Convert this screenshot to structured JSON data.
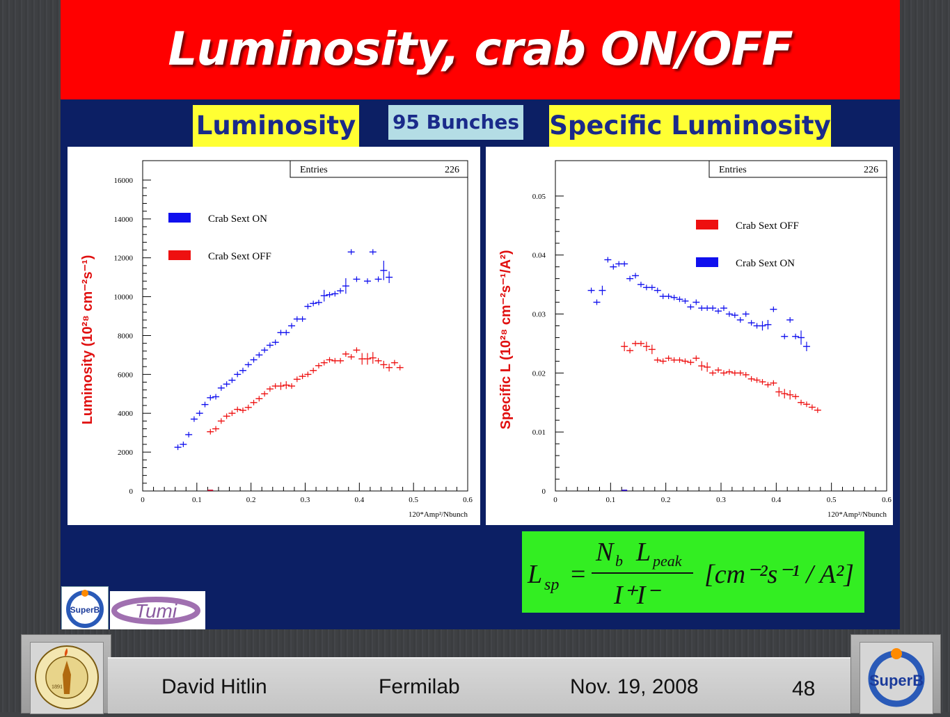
{
  "slide": {
    "title": "Luminosity, crab ON/OFF",
    "label_luminosity": "Luminosity",
    "label_bunches": "95 Bunches",
    "label_specific": "Specific Luminosity",
    "colors": {
      "title_bg": "#ff0000",
      "slide_bg": "#0c1f64",
      "label_bg": "#ffff33",
      "formula_bg": "#33ee22"
    }
  },
  "formula": {
    "lhs": "L",
    "lhs_sub": "sp",
    "num_N": "N",
    "num_N_sub": "b",
    "num_L": "L",
    "num_L_sub": "peak",
    "den": "I⁺I⁻",
    "units": "[cm⁻²s⁻¹ / A²]"
  },
  "logos": {
    "superb_small": "SuperB",
    "tumi": "Tumi"
  },
  "footer": {
    "author": "David Hitlin",
    "venue": "Fermilab",
    "date": "Nov. 19, 2008",
    "page": "48",
    "left_seal": "CALIFORNIA INSTITUTE OF TECHNOLOGY",
    "seal_year": "1891",
    "right_logo": "SuperB"
  },
  "chart_data": [
    {
      "type": "scatter",
      "ylabel": "Luminosity  (10²⁸ cm⁻²s⁻¹)",
      "xlabel": "120*Amp²/Nbunch",
      "xlim": [
        0,
        0.6
      ],
      "ylim": [
        0,
        17000
      ],
      "xticks": [
        "0",
        "0.1",
        "0.2",
        "0.3",
        "0.4",
        "0.5",
        "0.6"
      ],
      "yticks": [
        "0",
        "2000",
        "4000",
        "6000",
        "8000",
        "10000",
        "12000",
        "14000",
        "16000"
      ],
      "stats": {
        "label": "Entries",
        "value": "226"
      },
      "legend": [
        "Crab Sext ON",
        "Crab Sext OFF"
      ],
      "legend_position": "upper-left",
      "series": [
        {
          "name": "Crab Sext ON",
          "color": "#1010ee",
          "x": [
            0.065,
            0.075,
            0.085,
            0.095,
            0.105,
            0.115,
            0.125,
            0.135,
            0.145,
            0.155,
            0.165,
            0.175,
            0.185,
            0.195,
            0.205,
            0.215,
            0.225,
            0.235,
            0.245,
            0.255,
            0.265,
            0.275,
            0.285,
            0.295,
            0.305,
            0.315,
            0.325,
            0.335,
            0.345,
            0.355,
            0.365,
            0.375,
            0.385,
            0.395,
            0.415,
            0.425,
            0.435,
            0.445,
            0.455
          ],
          "y": [
            2250,
            2400,
            2900,
            3700,
            4000,
            4450,
            4800,
            4850,
            5300,
            5500,
            5700,
            6000,
            6200,
            6500,
            6750,
            7000,
            7250,
            7500,
            7650,
            8150,
            8150,
            8500,
            8850,
            8850,
            9500,
            9650,
            9700,
            10050,
            10100,
            10150,
            10300,
            10550,
            12300,
            10900,
            10800,
            12300,
            10900,
            11350,
            11000
          ],
          "yerr": [
            0,
            0,
            0,
            0,
            0,
            0,
            0,
            0,
            0,
            0,
            0,
            0,
            0,
            0,
            0,
            0,
            0,
            0,
            0,
            0,
            0,
            0,
            0,
            0,
            0,
            0,
            0,
            300,
            0,
            0,
            0,
            400,
            0,
            0,
            0,
            0,
            0,
            500,
            300
          ]
        },
        {
          "name": "Crab Sext OFF",
          "color": "#ee1010",
          "x": [
            0.125,
            0.135,
            0.145,
            0.155,
            0.165,
            0.175,
            0.185,
            0.195,
            0.205,
            0.215,
            0.225,
            0.235,
            0.245,
            0.255,
            0.265,
            0.275,
            0.285,
            0.295,
            0.305,
            0.315,
            0.325,
            0.335,
            0.345,
            0.355,
            0.365,
            0.375,
            0.385,
            0.395,
            0.405,
            0.415,
            0.425,
            0.435,
            0.445,
            0.455,
            0.465,
            0.475
          ],
          "y": [
            3050,
            3200,
            3600,
            3850,
            4000,
            4200,
            4150,
            4300,
            4550,
            4750,
            5000,
            5250,
            5400,
            5400,
            5450,
            5400,
            5750,
            5900,
            6000,
            6200,
            6450,
            6600,
            6750,
            6700,
            6700,
            7050,
            6900,
            7250,
            6800,
            6800,
            6850,
            6700,
            6500,
            6350,
            6600,
            6350
          ],
          "yerr": [
            0,
            0,
            0,
            0,
            0,
            0,
            0,
            0,
            0,
            0,
            0,
            0,
            0,
            200,
            200,
            0,
            0,
            0,
            0,
            0,
            0,
            0,
            0,
            0,
            0,
            0,
            0,
            0,
            300,
            300,
            300,
            0,
            200,
            200,
            0,
            0
          ]
        }
      ]
    },
    {
      "type": "scatter",
      "ylabel": "Specific L  (10²⁸ cm⁻²s⁻¹/A²)",
      "xlabel": "120*Amp²/Nbunch",
      "xlim": [
        0,
        0.6
      ],
      "ylim": [
        0,
        0.056
      ],
      "xticks": [
        "0",
        "0.1",
        "0.2",
        "0.3",
        "0.4",
        "0.5",
        "0.6"
      ],
      "yticks": [
        "0",
        "0.01",
        "0.02",
        "0.03",
        "0.04",
        "0.05"
      ],
      "stats": {
        "label": "Entries",
        "value": "226"
      },
      "legend": [
        "Crab Sext OFF",
        "Crab Sext ON"
      ],
      "legend_position": "upper-right",
      "series": [
        {
          "name": "Crab Sext OFF",
          "color": "#ee1010",
          "x": [
            0.125,
            0.135,
            0.145,
            0.155,
            0.165,
            0.175,
            0.185,
            0.195,
            0.205,
            0.215,
            0.225,
            0.235,
            0.245,
            0.255,
            0.265,
            0.275,
            0.285,
            0.295,
            0.305,
            0.315,
            0.325,
            0.335,
            0.345,
            0.355,
            0.365,
            0.375,
            0.385,
            0.395,
            0.405,
            0.415,
            0.425,
            0.435,
            0.445,
            0.455,
            0.465,
            0.475
          ],
          "y": [
            0.0245,
            0.0238,
            0.025,
            0.025,
            0.0245,
            0.024,
            0.0222,
            0.022,
            0.0225,
            0.0222,
            0.0222,
            0.022,
            0.0218,
            0.0225,
            0.0212,
            0.021,
            0.02,
            0.0205,
            0.02,
            0.0202,
            0.02,
            0.02,
            0.0197,
            0.019,
            0.0188,
            0.0185,
            0.018,
            0.0183,
            0.0168,
            0.0165,
            0.0163,
            0.016,
            0.015,
            0.0147,
            0.0142,
            0.0137
          ],
          "yerr": [
            0.0008,
            0,
            0,
            0,
            0.0008,
            0.0008,
            0,
            0,
            0,
            0,
            0,
            0,
            0,
            0,
            0.0008,
            0.0008,
            0,
            0,
            0,
            0,
            0,
            0,
            0,
            0,
            0,
            0,
            0,
            0,
            0.0008,
            0.0008,
            0.0008,
            0,
            0,
            0,
            0,
            0
          ]
        },
        {
          "name": "Crab Sext ON",
          "color": "#1010ee",
          "x": [
            0.065,
            0.075,
            0.085,
            0.095,
            0.105,
            0.115,
            0.125,
            0.135,
            0.145,
            0.155,
            0.165,
            0.175,
            0.185,
            0.195,
            0.205,
            0.215,
            0.225,
            0.235,
            0.245,
            0.255,
            0.265,
            0.275,
            0.285,
            0.295,
            0.305,
            0.315,
            0.325,
            0.335,
            0.345,
            0.355,
            0.365,
            0.375,
            0.385,
            0.395,
            0.415,
            0.425,
            0.435,
            0.445,
            0.455
          ],
          "y": [
            0.034,
            0.032,
            0.034,
            0.0392,
            0.038,
            0.0385,
            0.0385,
            0.036,
            0.0365,
            0.035,
            0.0345,
            0.0345,
            0.034,
            0.033,
            0.033,
            0.0328,
            0.0325,
            0.0322,
            0.0312,
            0.032,
            0.031,
            0.031,
            0.031,
            0.0305,
            0.031,
            0.03,
            0.0298,
            0.029,
            0.03,
            0.0285,
            0.028,
            0.028,
            0.0282,
            0.0308,
            0.0262,
            0.029,
            0.0262,
            0.026,
            0.0245
          ],
          "yerr": [
            0,
            0,
            0.0008,
            0,
            0,
            0,
            0,
            0,
            0,
            0,
            0,
            0,
            0,
            0,
            0,
            0,
            0,
            0,
            0,
            0,
            0,
            0,
            0,
            0,
            0,
            0,
            0,
            0,
            0,
            0,
            0,
            0.0008,
            0.0008,
            0,
            0,
            0,
            0,
            0.0012,
            0.0008
          ]
        }
      ]
    }
  ]
}
